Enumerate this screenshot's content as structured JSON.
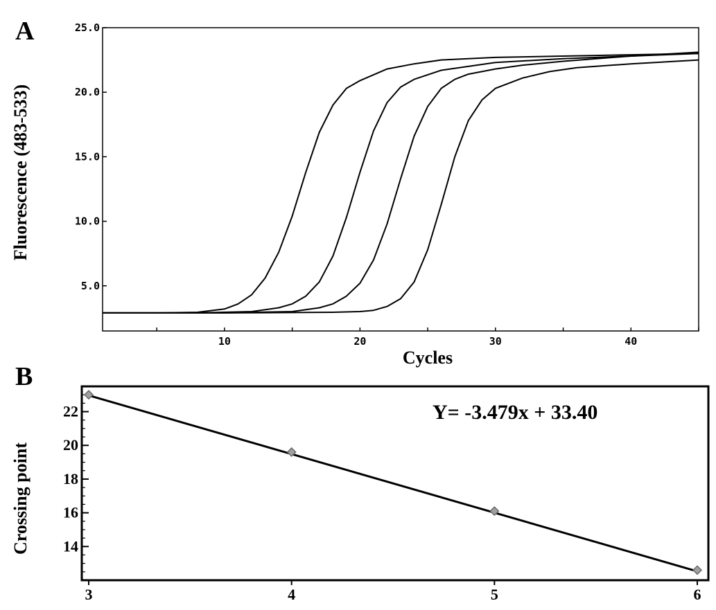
{
  "chart_data": [
    {
      "panel_label": "A",
      "type": "line",
      "xlabel": "Cycles",
      "ylabel": "Fluorescence (483-533)",
      "xlim": [
        1,
        45
      ],
      "ylim": [
        1.5,
        25.0
      ],
      "x_ticks": [
        10,
        20,
        30,
        40
      ],
      "x_tick_labels": [
        "10",
        "20",
        "30",
        "40"
      ],
      "y_ticks": [
        5.0,
        10.0,
        15.0,
        20.0,
        25.0
      ],
      "y_tick_labels": [
        "5.0",
        "10.0",
        "15.0",
        "20.0",
        "25.0"
      ],
      "grid": false,
      "series": [
        {
          "x": [
            1,
            5,
            8,
            10,
            11,
            12,
            13,
            14,
            15,
            16,
            17,
            18,
            19,
            20,
            22,
            24,
            26,
            28,
            30,
            35,
            40,
            45
          ],
          "values": [
            2.9,
            2.9,
            2.95,
            3.2,
            3.6,
            4.3,
            5.6,
            7.6,
            10.4,
            13.8,
            16.9,
            19.0,
            20.3,
            20.9,
            21.8,
            22.2,
            22.5,
            22.6,
            22.7,
            22.8,
            22.9,
            23.0
          ]
        },
        {
          "x": [
            1,
            8,
            12,
            14,
            15,
            16,
            17,
            18,
            19,
            20,
            21,
            22,
            23,
            24,
            26,
            28,
            30,
            35,
            40,
            45
          ],
          "values": [
            2.9,
            2.9,
            3.0,
            3.3,
            3.6,
            4.2,
            5.3,
            7.3,
            10.3,
            13.8,
            17.0,
            19.2,
            20.4,
            21.0,
            21.7,
            22.0,
            22.3,
            22.6,
            22.8,
            23.0
          ]
        },
        {
          "x": [
            1,
            10,
            15,
            17,
            18,
            19,
            20,
            21,
            22,
            23,
            24,
            25,
            26,
            27,
            28,
            30,
            32,
            35,
            40,
            45
          ],
          "values": [
            2.9,
            2.9,
            3.0,
            3.3,
            3.6,
            4.2,
            5.2,
            7.0,
            9.8,
            13.3,
            16.6,
            18.9,
            20.3,
            21.0,
            21.4,
            21.8,
            22.1,
            22.4,
            22.8,
            23.1
          ]
        },
        {
          "x": [
            1,
            10,
            18,
            20,
            21,
            22,
            23,
            24,
            25,
            26,
            27,
            28,
            29,
            30,
            32,
            34,
            36,
            40,
            45
          ],
          "values": [
            2.9,
            2.9,
            2.95,
            3.0,
            3.1,
            3.4,
            4.0,
            5.3,
            7.8,
            11.3,
            15.0,
            17.8,
            19.4,
            20.3,
            21.1,
            21.6,
            21.9,
            22.2,
            22.5
          ]
        }
      ]
    },
    {
      "panel_label": "B",
      "type": "scatter",
      "ylabel": "Crossing point",
      "xlim": [
        3,
        6
      ],
      "ylim": [
        12,
        23.5
      ],
      "x_ticks": [
        3,
        4,
        5,
        6
      ],
      "x_tick_labels": [
        "3",
        "4",
        "5",
        "6"
      ],
      "y_ticks": [
        14,
        16,
        18,
        20,
        22
      ],
      "y_tick_labels": [
        "14",
        "16",
        "18",
        "20",
        "22"
      ],
      "y_minor_step": 0.5,
      "grid": false,
      "equation": "Y= -3.479x + 33.40",
      "fit": {
        "slope": -3.479,
        "intercept": 33.4
      },
      "points": {
        "x": [
          3,
          4,
          5,
          6
        ],
        "y": [
          23.0,
          19.6,
          16.1,
          12.6
        ]
      }
    }
  ]
}
